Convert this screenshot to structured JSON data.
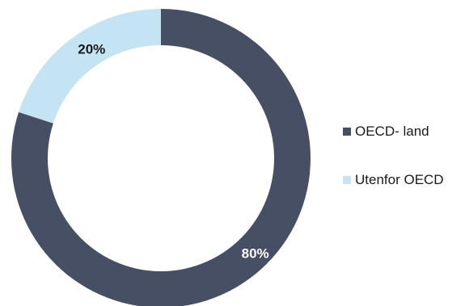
{
  "chart_data": {
    "type": "pie",
    "donut": true,
    "title": "",
    "legend_position": "right",
    "slices": [
      {
        "name": "OECD- land",
        "value": 80,
        "label": "80%",
        "color": "#464f63",
        "label_color": "#ffffff"
      },
      {
        "name": "Utenfor OECD",
        "value": 20,
        "label": "20%",
        "color": "#c5e4f3",
        "label_color": "#1a1a1a"
      }
    ]
  }
}
